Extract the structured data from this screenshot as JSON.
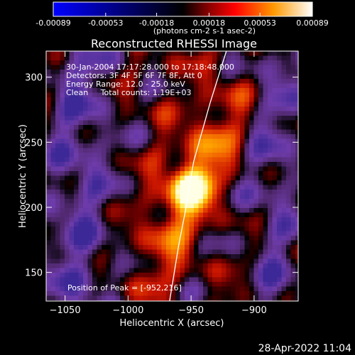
{
  "chart_data": {
    "type": "heatmap",
    "title": "Reconstructed RHESSI Image",
    "annotations": [
      "30-Jan-2004 17:17:28.000 to 17:18:48.000",
      "Detectors: 3F 4F 5F 6F 7F 8F, Att 0",
      "Energy Range: 12.0 - 25.0 keV",
      "Clean     Total counts: 1.19E+03"
    ],
    "peak_label": "Position of Peak = [-952,216]",
    "peak": {
      "x": -952,
      "y": 216
    },
    "xlabel": "Heliocentric X (arcsec)",
    "ylabel": "Heliocentric Y (arcsec)",
    "xlim": [
      -1065,
      -865
    ],
    "ylim": [
      128,
      320
    ],
    "x_ticks": [
      -1050,
      -1000,
      -950,
      -900
    ],
    "y_ticks": [
      150,
      200,
      250,
      300
    ],
    "colorbar": {
      "min": -0.00089,
      "max": 0.00089,
      "tick_values": [
        -0.00089,
        -0.00053,
        -0.00018,
        0.00018,
        0.00053,
        0.00089
      ],
      "tick_labels": [
        "-0.00089",
        "-0.00053",
        "-0.00018",
        "0.00018",
        "0.00053",
        "0.00089"
      ],
      "unit_label": "(photons cm-2 s-1 asec-2)"
    },
    "limb": [
      [
        -967,
        128
      ],
      [
        -960,
        170
      ],
      [
        -955,
        195
      ],
      [
        -948,
        235
      ],
      [
        -935,
        280
      ],
      [
        -922,
        320
      ]
    ]
  },
  "timestamp": "28-Apr-2022 11:04"
}
